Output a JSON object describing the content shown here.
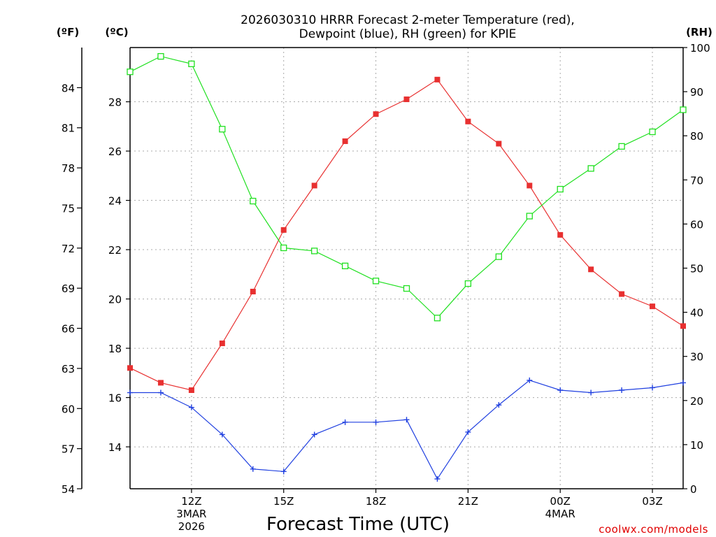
{
  "chart_data": {
    "type": "line",
    "title": [
      "2026030310 HRRR Forecast 2-meter Temperature (red),",
      "Dewpoint (blue), RH (green) for KPIE"
    ],
    "xlabel": "Forecast Time (UTC)",
    "credit": "coolwx.com/models",
    "units": {
      "fahrenheit": "(ºF)",
      "celsius": "(ºC)",
      "rh": "(RH)"
    },
    "x_hours": [
      10,
      11,
      12,
      13,
      14,
      15,
      16,
      17,
      18,
      19,
      20,
      21,
      22,
      23,
      24,
      25,
      26,
      27,
      28
    ],
    "xlim": [
      10,
      28
    ],
    "x_ticks": [
      {
        "hour": 12,
        "lines": [
          "12Z",
          "3MAR",
          "2026"
        ]
      },
      {
        "hour": 15,
        "lines": [
          "15Z"
        ]
      },
      {
        "hour": 18,
        "lines": [
          "18Z"
        ]
      },
      {
        "hour": 21,
        "lines": [
          "21Z"
        ]
      },
      {
        "hour": 24,
        "lines": [
          "00Z",
          "4MAR"
        ]
      },
      {
        "hour": 27,
        "lines": [
          "03Z"
        ]
      }
    ],
    "celsius_axis": {
      "range": [
        12.3,
        30.2
      ],
      "ticks": [
        "14",
        "16",
        "18",
        "20",
        "22",
        "24",
        "26",
        "28"
      ]
    },
    "fahrenheit_axis": {
      "range": [
        54,
        87
      ],
      "ticks": [
        "54",
        "57",
        "60",
        "63",
        "66",
        "69",
        "72",
        "75",
        "78",
        "81",
        "84"
      ]
    },
    "rh_axis": {
      "range": [
        0,
        100
      ],
      "ticks": [
        "0",
        "10",
        "20",
        "30",
        "40",
        "50",
        "60",
        "70",
        "80",
        "90",
        "100"
      ]
    },
    "series": [
      {
        "name": "Temperature",
        "axis": "celsius",
        "color": "#e83030",
        "marker": "filled-square",
        "values": [
          17.2,
          16.6,
          16.3,
          18.2,
          20.3,
          22.8,
          24.6,
          26.4,
          27.5,
          28.1,
          28.9,
          27.2,
          26.3,
          24.6,
          22.6,
          21.2,
          20.2,
          19.7,
          18.9
        ]
      },
      {
        "name": "Dewpoint",
        "axis": "celsius",
        "color": "#2040e0",
        "marker": "plus",
        "values": [
          16.2,
          16.2,
          15.6,
          14.5,
          13.1,
          13.0,
          14.5,
          15.0,
          15.0,
          15.1,
          12.7,
          14.6,
          15.7,
          16.7,
          16.3,
          16.2,
          16.3,
          16.4,
          16.6
        ]
      },
      {
        "name": "RH",
        "axis": "rh",
        "color": "#20e020",
        "marker": "open-square",
        "values": [
          94.5,
          98,
          96.3,
          81.5,
          65.2,
          54.6,
          53.9,
          50.5,
          47.1,
          45.4,
          38.7,
          46.5,
          52.6,
          61.8,
          67.9,
          72.6,
          77.6,
          80.9,
          85.9
        ]
      }
    ]
  }
}
